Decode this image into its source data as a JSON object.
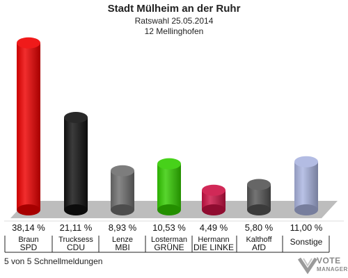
{
  "header": {
    "title": "Stadt Mülheim an der Ruhr",
    "subtitle1": "Ratswahl 25.05.2014",
    "subtitle2": "12 Mellinghofen"
  },
  "footer": {
    "note": "5 von 5 Schnellmeldungen",
    "logo_line1": "VOTE",
    "logo_line2": "MANAGER"
  },
  "chart_data": {
    "type": "bar",
    "title": "Stadt Mülheim an der Ruhr",
    "ylim": [
      0,
      40
    ],
    "grid": false,
    "categories": [
      "SPD",
      "CDU",
      "MBI",
      "GRÜNE",
      "DIE LINKE",
      "AfD",
      "Sonstige"
    ],
    "candidates": [
      "Braun",
      "Trucksess",
      "Lenze",
      "Losterman",
      "Hermann",
      "Kalthoff",
      ""
    ],
    "values": [
      38.14,
      21.11,
      8.93,
      10.53,
      4.49,
      5.8,
      11.0
    ],
    "value_labels": [
      "38,14 %",
      "21,11 %",
      "8,93 %",
      "10,53 %",
      "4,49 %",
      "5,80 %",
      "11,00 %"
    ],
    "colors": [
      "#ee0000",
      "#111111",
      "#6e6e6e",
      "#33cc00",
      "#cc1144",
      "#555555",
      "#aab4e0"
    ]
  }
}
